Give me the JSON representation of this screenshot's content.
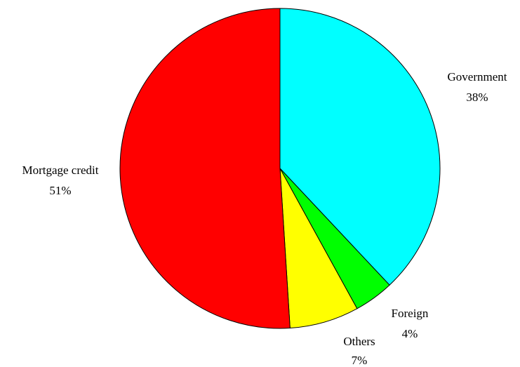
{
  "chart_data": {
    "type": "pie",
    "title": "",
    "start_angle_deg": 0,
    "direction": "clockwise",
    "slices": [
      {
        "name": "Government",
        "value": 38,
        "label": "Government",
        "value_label": "38%",
        "color": "#00FFFF"
      },
      {
        "name": "Foreign",
        "value": 4,
        "label": "Foreign",
        "value_label": "4%",
        "color": "#00FF00"
      },
      {
        "name": "Others",
        "value": 7,
        "label": "Others",
        "value_label": "7%",
        "color": "#FFFF00"
      },
      {
        "name": "Mortgage credit",
        "value": 51,
        "label": "Mortgage credit",
        "value_label": "51%",
        "color": "#FF0000"
      }
    ],
    "border_color": "#000000"
  }
}
